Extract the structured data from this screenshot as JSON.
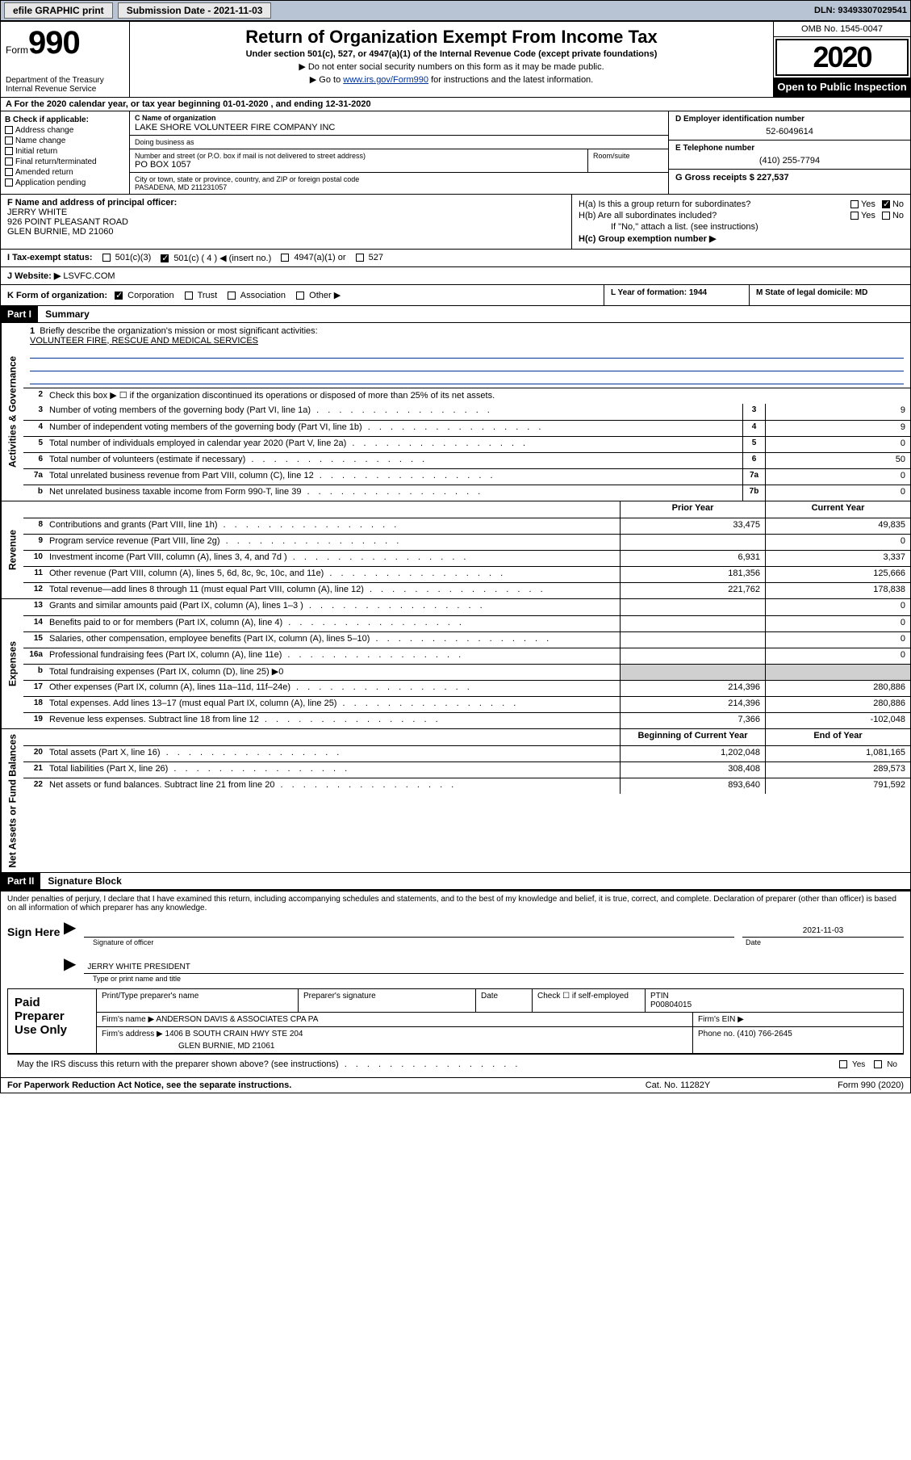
{
  "topbar": {
    "efile_label": "efile GRAPHIC print",
    "submission_label": "Submission Date - 2021-11-03",
    "dln_label": "DLN: 93493307029541"
  },
  "header": {
    "form_word": "Form",
    "form_num": "990",
    "dept": "Department of the Treasury\nInternal Revenue Service",
    "title": "Return of Organization Exempt From Income Tax",
    "sub": "Under section 501(c), 527, or 4947(a)(1) of the Internal Revenue Code (except private foundations)",
    "l1": "▶ Do not enter social security numbers on this form as it may be made public.",
    "l2_pre": "▶ Go to ",
    "l2_link": "www.irs.gov/Form990",
    "l2_post": " for instructions and the latest information.",
    "omb": "OMB No. 1545-0047",
    "year": "2020",
    "inspection": "Open to Public Inspection"
  },
  "row_a": "A For the 2020 calendar year, or tax year beginning 01-01-2020    , and ending 12-31-2020",
  "col_b": {
    "heading": "B Check if applicable:",
    "items": [
      "Address change",
      "Name change",
      "Initial return",
      "Final return/terminated",
      "Amended return",
      "Application pending"
    ]
  },
  "col_c": {
    "name_lbl": "C Name of organization",
    "name_val": "LAKE SHORE VOLUNTEER FIRE COMPANY INC",
    "dba_lbl": "Doing business as",
    "addr_lbl": "Number and street (or P.O. box if mail is not delivered to street address)",
    "addr_val": "PO BOX 1057",
    "room_lbl": "Room/suite",
    "city_lbl": "City or town, state or province, country, and ZIP or foreign postal code",
    "city_val": "PASADENA, MD  211231057"
  },
  "col_d": {
    "lbl": "D Employer identification number",
    "val": "52-6049614"
  },
  "col_e": {
    "lbl": "E Telephone number",
    "val": "(410) 255-7794"
  },
  "col_g": {
    "lbl": "G Gross receipts $ 227,537"
  },
  "col_f": {
    "lbl": "F Name and address of principal officer:",
    "name": "JERRY WHITE",
    "addr1": "926 POINT PLEASANT ROAD",
    "addr2": "GLEN BURNIE, MD  21060"
  },
  "col_h": {
    "a_lbl": "H(a)  Is this a group return for subordinates?",
    "b_lbl": "H(b)  Are all subordinates included?",
    "note": "If \"No,\" attach a list. (see instructions)",
    "c_lbl": "H(c)  Group exemption number ▶",
    "yes": "Yes",
    "no": "No"
  },
  "row_i": {
    "lbl": "I  Tax-exempt status:",
    "o1": "501(c)(3)",
    "o2": "501(c) ( 4 ) ◀ (insert no.)",
    "o3": "4947(a)(1) or",
    "o4": "527"
  },
  "row_j": {
    "lbl": "J  Website: ▶",
    "val": "LSVFC.COM"
  },
  "row_k": {
    "lbl": "K Form of organization:",
    "o1": "Corporation",
    "o2": "Trust",
    "o3": "Association",
    "o4": "Other ▶"
  },
  "col_l": {
    "lbl": "L Year of formation: 1944"
  },
  "col_m": {
    "lbl": "M State of legal domicile: MD"
  },
  "part1": {
    "header": "Part I",
    "title": "Summary"
  },
  "summary": {
    "q1_lbl": "Briefly describe the organization's mission or most significant activities:",
    "q1_val": "VOLUNTEER FIRE, RESCUE AND MEDICAL SERVICES",
    "q2": "Check this box ▶ ☐  if the organization discontinued its operations or disposed of more than 25% of its net assets.",
    "q3": "Number of voting members of the governing body (Part VI, line 1a)",
    "q4": "Number of independent voting members of the governing body (Part VI, line 1b)",
    "q5": "Total number of individuals employed in calendar year 2020 (Part V, line 2a)",
    "q6": "Total number of volunteers (estimate if necessary)",
    "q7a": "Total unrelated business revenue from Part VIII, column (C), line 12",
    "q7b": "Net unrelated business taxable income from Form 990-T, line 39",
    "v3": "9",
    "v4": "9",
    "v5": "0",
    "v6": "50",
    "v7a": "0",
    "v7b": "0",
    "n3": "3",
    "n4": "4",
    "n5": "5",
    "n6": "6",
    "n7a": "7a",
    "n7b": "7b"
  },
  "tabs": {
    "governance": "Activities & Governance",
    "revenue": "Revenue",
    "expenses": "Expenses",
    "netassets": "Net Assets or Fund Balances"
  },
  "revhead": {
    "prior": "Prior Year",
    "current": "Current Year"
  },
  "rev": [
    {
      "n": "8",
      "lbl": "Contributions and grants (Part VIII, line 1h)",
      "p": "33,475",
      "c": "49,835"
    },
    {
      "n": "9",
      "lbl": "Program service revenue (Part VIII, line 2g)",
      "p": "",
      "c": "0"
    },
    {
      "n": "10",
      "lbl": "Investment income (Part VIII, column (A), lines 3, 4, and 7d )",
      "p": "6,931",
      "c": "3,337"
    },
    {
      "n": "11",
      "lbl": "Other revenue (Part VIII, column (A), lines 5, 6d, 8c, 9c, 10c, and 11e)",
      "p": "181,356",
      "c": "125,666"
    },
    {
      "n": "12",
      "lbl": "Total revenue—add lines 8 through 11 (must equal Part VIII, column (A), line 12)",
      "p": "221,762",
      "c": "178,838"
    }
  ],
  "exp": [
    {
      "n": "13",
      "lbl": "Grants and similar amounts paid (Part IX, column (A), lines 1–3 )",
      "p": "",
      "c": "0"
    },
    {
      "n": "14",
      "lbl": "Benefits paid to or for members (Part IX, column (A), line 4)",
      "p": "",
      "c": "0"
    },
    {
      "n": "15",
      "lbl": "Salaries, other compensation, employee benefits (Part IX, column (A), lines 5–10)",
      "p": "",
      "c": "0"
    },
    {
      "n": "16a",
      "lbl": "Professional fundraising fees (Part IX, column (A), line 11e)",
      "p": "",
      "c": "0"
    },
    {
      "n": "b",
      "lbl": "Total fundraising expenses (Part IX, column (D), line 25) ▶0",
      "p": "SHADE",
      "c": "SHADE"
    },
    {
      "n": "17",
      "lbl": "Other expenses (Part IX, column (A), lines 11a–11d, 11f–24e)",
      "p": "214,396",
      "c": "280,886"
    },
    {
      "n": "18",
      "lbl": "Total expenses. Add lines 13–17 (must equal Part IX, column (A), line 25)",
      "p": "214,396",
      "c": "280,886"
    },
    {
      "n": "19",
      "lbl": "Revenue less expenses. Subtract line 18 from line 12",
      "p": "7,366",
      "c": "-102,048"
    }
  ],
  "nethead": {
    "begin": "Beginning of Current Year",
    "end": "End of Year"
  },
  "net": [
    {
      "n": "20",
      "lbl": "Total assets (Part X, line 16)",
      "p": "1,202,048",
      "c": "1,081,165"
    },
    {
      "n": "21",
      "lbl": "Total liabilities (Part X, line 26)",
      "p": "308,408",
      "c": "289,573"
    },
    {
      "n": "22",
      "lbl": "Net assets or fund balances. Subtract line 21 from line 20",
      "p": "893,640",
      "c": "791,592"
    }
  ],
  "part2": {
    "header": "Part II",
    "title": "Signature Block"
  },
  "sig": {
    "declaration": "Under penalties of perjury, I declare that I have examined this return, including accompanying schedules and statements, and to the best of my knowledge and belief, it is true, correct, and complete. Declaration of preparer (other than officer) is based on all information of which preparer has any knowledge.",
    "sign_here": "Sign Here",
    "sig_of_officer": "Signature of officer",
    "sig_date": "2021-11-03",
    "date_lbl": "Date",
    "name_title": "JERRY WHITE  PRESIDENT",
    "name_title_lbl": "Type or print name and title"
  },
  "prep": {
    "left": "Paid Preparer Use Only",
    "r1c1_lbl": "Print/Type preparer's name",
    "r1c2_lbl": "Preparer's signature",
    "r1c3_lbl": "Date",
    "r1c4_lbl": "Check ☐ if self-employed",
    "r1c5_lbl": "PTIN",
    "r1c5_val": "P00804015",
    "r2_firm_lbl": "Firm's name    ▶",
    "r2_firm_val": "ANDERSON DAVIS & ASSOCIATES CPA PA",
    "r2_ein_lbl": "Firm's EIN ▶",
    "r3_addr_lbl": "Firm's address ▶",
    "r3_addr_val1": "1406 B SOUTH CRAIN HWY STE 204",
    "r3_addr_val2": "GLEN BURNIE, MD  21061",
    "r3_phone_lbl": "Phone no. (410) 766-2645"
  },
  "discuss": {
    "lbl": "May the IRS discuss this return with the preparer shown above? (see instructions)",
    "yes": "Yes",
    "no": "No"
  },
  "footer": {
    "left": "For Paperwork Reduction Act Notice, see the separate instructions.",
    "mid": "Cat. No. 11282Y",
    "right": "Form 990 (2020)"
  }
}
